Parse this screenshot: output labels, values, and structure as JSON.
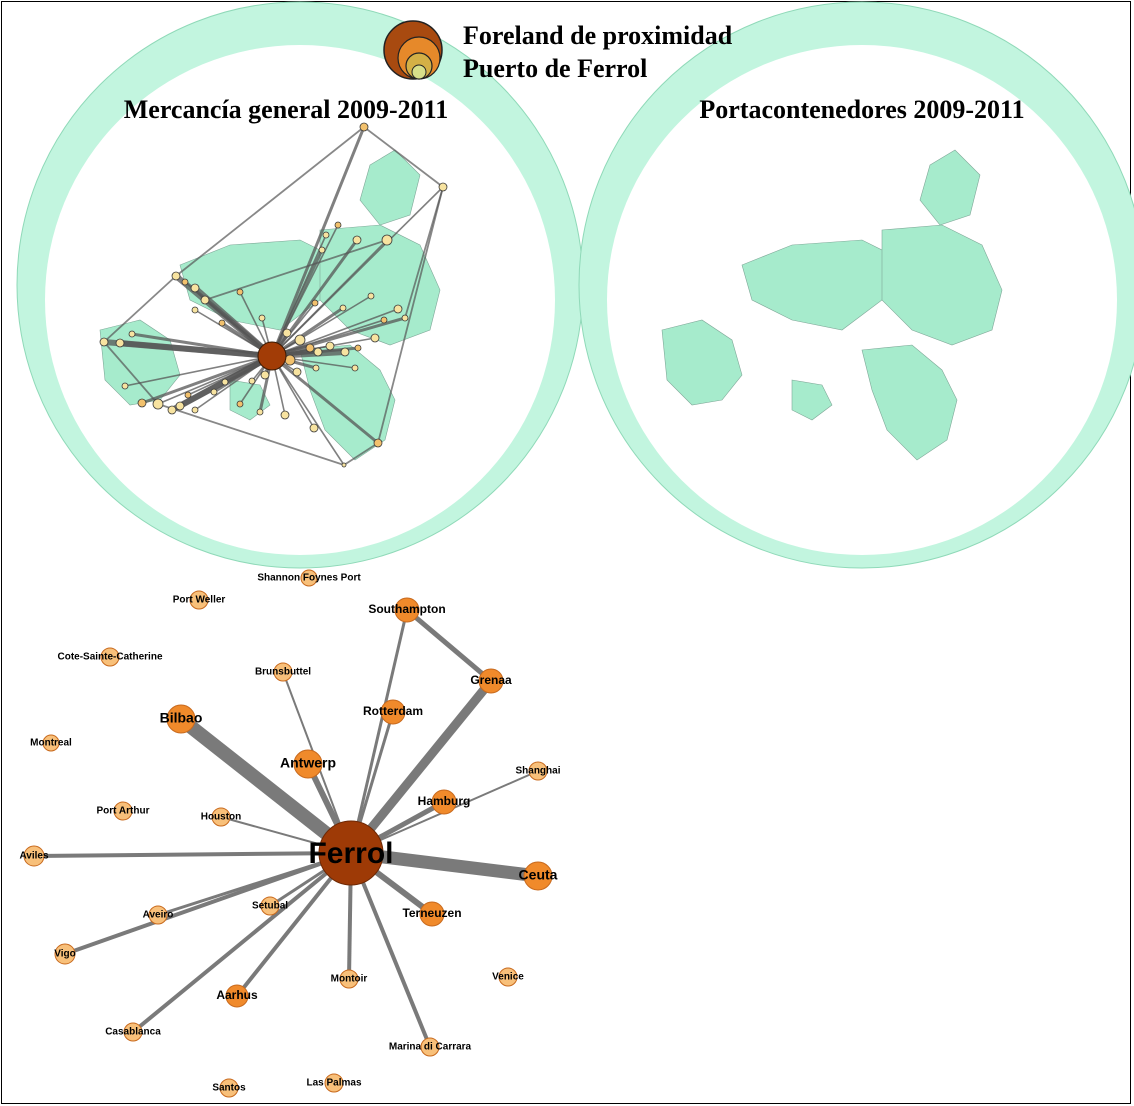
{
  "legend": {
    "line1": "Foreland de proximidad",
    "line2": "Puerto de Ferrol"
  },
  "maps": [
    {
      "id": "mercancia",
      "title": "Mercancía general 2009-2011"
    },
    {
      "id": "portacontenedores",
      "title": "Portacontenedores 2009-2011"
    }
  ],
  "colors": {
    "ocean": "#c2f5df",
    "land": "#a6ebcc",
    "edge": "#7a7a7a",
    "hub": "#9e3a06",
    "node_large": "#f08a2b",
    "node_small": "#f8c07a",
    "node_stroke": "#c86a1e"
  },
  "network": {
    "hub": {
      "name": "Ferrol"
    },
    "nodes": [
      {
        "name": "Shannon Foynes Port",
        "size": "small"
      },
      {
        "name": "Port Weller",
        "size": "small"
      },
      {
        "name": "Southampton",
        "size": "medium"
      },
      {
        "name": "Cote-Sainte-Catherine",
        "size": "small"
      },
      {
        "name": "Brunsbuttel",
        "size": "small"
      },
      {
        "name": "Grenaa",
        "size": "medium"
      },
      {
        "name": "Rotterdam",
        "size": "medium"
      },
      {
        "name": "Bilbao",
        "size": "large"
      },
      {
        "name": "Montreal",
        "size": "small"
      },
      {
        "name": "Antwerp",
        "size": "large"
      },
      {
        "name": "Shanghai",
        "size": "small"
      },
      {
        "name": "Hamburg",
        "size": "medium"
      },
      {
        "name": "Port Arthur",
        "size": "small"
      },
      {
        "name": "Houston",
        "size": "small"
      },
      {
        "name": "Aviles",
        "size": "small"
      },
      {
        "name": "Ceuta",
        "size": "large"
      },
      {
        "name": "Setubal",
        "size": "small"
      },
      {
        "name": "Aveiro",
        "size": "small"
      },
      {
        "name": "Terneuzen",
        "size": "medium"
      },
      {
        "name": "Vigo",
        "size": "small"
      },
      {
        "name": "Venice",
        "size": "small"
      },
      {
        "name": "Montoir",
        "size": "small"
      },
      {
        "name": "Aarhus",
        "size": "medium"
      },
      {
        "name": "Casablanca",
        "size": "small"
      },
      {
        "name": "Marina di Carrara",
        "size": "small"
      },
      {
        "name": "Santos",
        "size": "small"
      },
      {
        "name": "Las Palmas",
        "size": "small"
      }
    ]
  }
}
